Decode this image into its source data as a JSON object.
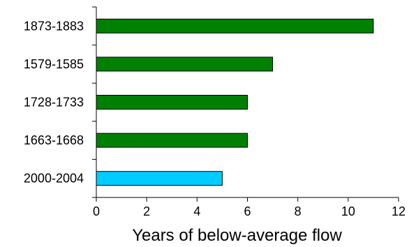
{
  "chart_data": {
    "type": "bar",
    "orientation": "horizontal",
    "categories": [
      "1873-1883",
      "1579-1585",
      "1728-1733",
      "1663-1668",
      "2000-2004"
    ],
    "values": [
      11,
      7,
      6,
      6,
      5
    ],
    "bar_colors": [
      "#008000",
      "#008000",
      "#008000",
      "#008000",
      "#00ccff"
    ],
    "title": "",
    "xlabel": "Years of below-average flow",
    "ylabel": "",
    "xlim": [
      0,
      12
    ],
    "xticks": [
      "0",
      "2",
      "4",
      "6",
      "8",
      "10",
      "12"
    ],
    "grid": false,
    "legend": "none"
  }
}
